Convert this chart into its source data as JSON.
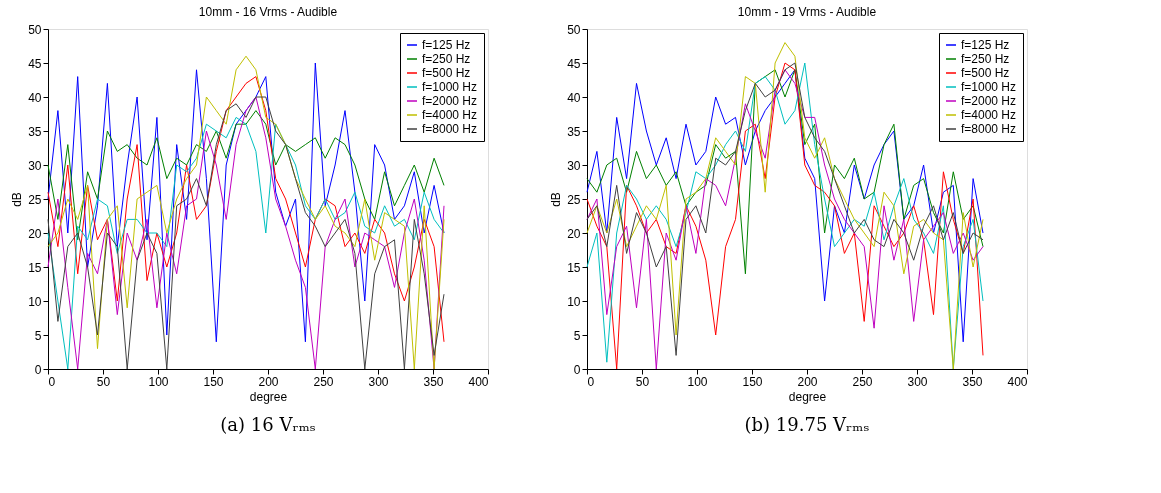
{
  "chart_data": [
    {
      "type": "line",
      "title": "10mm - 16 Vrms - Audible",
      "xlabel": "degree",
      "ylabel": "dB",
      "annotations": [
        "(a) 16 Vᵣₘₛ"
      ],
      "xlim": [
        0,
        400
      ],
      "xticks": [
        0,
        50,
        100,
        150,
        200,
        250,
        300,
        350,
        400
      ],
      "ylim": [
        0,
        50
      ],
      "yticks": [
        0,
        5,
        10,
        15,
        20,
        25,
        30,
        35,
        40,
        45,
        50
      ],
      "grid": false,
      "legend": "top right",
      "marker": "none",
      "line_style": "solid",
      "x": [
        0,
        9,
        18,
        27,
        36,
        45,
        54,
        63,
        72,
        81,
        90,
        99,
        108,
        117,
        126,
        135,
        144,
        153,
        162,
        171,
        180,
        189,
        198,
        207,
        216,
        225,
        234,
        243,
        252,
        261,
        270,
        279,
        288,
        297,
        306,
        315,
        324,
        333,
        342,
        351,
        360
      ],
      "series": [
        {
          "name": "f=125 Hz",
          "color": "#0000ff",
          "values": [
            25,
            38,
            20,
            43,
            15,
            24,
            42,
            18,
            30,
            40,
            19,
            37,
            5,
            33,
            22,
            44,
            28,
            4,
            30,
            36,
            38,
            40,
            43,
            26,
            21,
            25,
            4,
            45,
            24,
            30,
            38,
            26,
            10,
            33,
            30,
            22,
            24,
            29,
            20,
            27,
            20
          ]
        },
        {
          "name": "f=250 Hz",
          "color": "#008000",
          "values": [
            30,
            22,
            33,
            19,
            29,
            25,
            35,
            32,
            33,
            31,
            30,
            34,
            28,
            31,
            30,
            33,
            32,
            35,
            31,
            36,
            36,
            38,
            36,
            30,
            33,
            32,
            33,
            34,
            31,
            34,
            33,
            30,
            25,
            22,
            29,
            24,
            27,
            30,
            26,
            31,
            27
          ]
        },
        {
          "name": "f=500 Hz",
          "color": "#ff0000",
          "values": [
            26,
            18,
            30,
            14,
            27,
            19,
            22,
            10,
            25,
            33,
            13,
            20,
            15,
            20,
            30,
            22,
            24,
            32,
            38,
            40,
            42,
            43,
            38,
            28,
            25,
            20,
            15,
            22,
            25,
            24,
            18,
            20,
            17,
            22,
            20,
            14,
            10,
            15,
            22,
            18,
            4
          ]
        },
        {
          "name": "f=1000 Hz",
          "color": "#00bfbf",
          "values": [
            20,
            10,
            0,
            21,
            19,
            25,
            24,
            17,
            22,
            22,
            20,
            20,
            18,
            30,
            29,
            31,
            36,
            35,
            34,
            37,
            36,
            32,
            20,
            36,
            33,
            30,
            24,
            22,
            25,
            22,
            23,
            26,
            21,
            20,
            24,
            21,
            22,
            19,
            26,
            22,
            20
          ]
        },
        {
          "name": "f=2000 Hz",
          "color": "#bf00bf",
          "values": [
            15,
            25,
            12,
            0,
            17,
            14,
            22,
            8,
            20,
            16,
            22,
            9,
            20,
            14,
            24,
            25,
            35,
            30,
            22,
            33,
            38,
            40,
            34,
            25,
            21,
            16,
            12,
            0,
            18,
            22,
            25,
            15,
            20,
            19,
            18,
            12,
            20,
            25,
            16,
            0,
            24
          ]
        },
        {
          "name": "f=4000 Hz",
          "color": "#bfbf00",
          "values": [
            18,
            20,
            25,
            22,
            27,
            3,
            22,
            24,
            9,
            25,
            26,
            27,
            20,
            25,
            28,
            30,
            40,
            38,
            36,
            44,
            46,
            44,
            37,
            36,
            33,
            28,
            25,
            22,
            24,
            21,
            20,
            18,
            25,
            16,
            23,
            22,
            21,
            0,
            24,
            0,
            22
          ]
        },
        {
          "name": "f=8000 Hz",
          "color": "#404040",
          "values": [
            22,
            7,
            18,
            20,
            15,
            5,
            20,
            18,
            0,
            16,
            20,
            17,
            0,
            24,
            25,
            28,
            24,
            33,
            38,
            39,
            37,
            40,
            40,
            35,
            33,
            28,
            23,
            21,
            18,
            20,
            22,
            17,
            0,
            14,
            18,
            19,
            0,
            22,
            14,
            2,
            11
          ]
        }
      ]
    },
    {
      "type": "line",
      "title": "10mm - 19 Vrms - Audible",
      "xlabel": "degree",
      "ylabel": "dB",
      "annotations": [
        "(b) 19.75 Vᵣₘₛ"
      ],
      "xlim": [
        0,
        400
      ],
      "xticks": [
        0,
        50,
        100,
        150,
        200,
        250,
        300,
        350,
        400
      ],
      "ylim": [
        0,
        50
      ],
      "yticks": [
        0,
        5,
        10,
        15,
        20,
        25,
        30,
        35,
        40,
        45,
        50
      ],
      "grid": false,
      "legend": "top right",
      "marker": "none",
      "line_style": "solid",
      "x": [
        0,
        9,
        18,
        27,
        36,
        45,
        54,
        63,
        72,
        81,
        90,
        99,
        108,
        117,
        126,
        135,
        144,
        153,
        162,
        171,
        180,
        189,
        198,
        207,
        216,
        225,
        234,
        243,
        252,
        261,
        270,
        279,
        288,
        297,
        306,
        315,
        324,
        333,
        342,
        351,
        360
      ],
      "series": [
        {
          "name": "f=125 Hz",
          "color": "#0000ff",
          "values": [
            26,
            32,
            20,
            37,
            28,
            42,
            35,
            30,
            34,
            28,
            36,
            30,
            32,
            40,
            36,
            37,
            30,
            35,
            38,
            40,
            42,
            44,
            31,
            28,
            10,
            24,
            20,
            30,
            25,
            30,
            33,
            35,
            22,
            24,
            30,
            20,
            26,
            27,
            4,
            28,
            20
          ]
        },
        {
          "name": "f=250 Hz",
          "color": "#008000",
          "values": [
            28,
            26,
            30,
            31,
            26,
            32,
            28,
            30,
            27,
            29,
            24,
            26,
            27,
            33,
            31,
            32,
            14,
            42,
            43,
            44,
            40,
            44,
            33,
            36,
            20,
            30,
            28,
            31,
            25,
            26,
            33,
            36,
            22,
            27,
            28,
            23,
            20,
            29,
            22,
            24,
            18
          ]
        },
        {
          "name": "f=500 Hz",
          "color": "#ff0000",
          "values": [
            25,
            21,
            18,
            0,
            27,
            24,
            20,
            22,
            18,
            17,
            24,
            21,
            16,
            5,
            18,
            22,
            35,
            36,
            28,
            40,
            45,
            44,
            30,
            27,
            26,
            24,
            17,
            20,
            7,
            24,
            21,
            18,
            20,
            24,
            19,
            8,
            29,
            22,
            17,
            25,
            2
          ]
        },
        {
          "name": "f=1000 Hz",
          "color": "#00bfbf",
          "values": [
            15,
            20,
            1,
            20,
            27,
            25,
            22,
            24,
            22,
            18,
            23,
            29,
            28,
            30,
            33,
            35,
            32,
            42,
            43,
            41,
            36,
            38,
            45,
            33,
            25,
            18,
            20,
            22,
            21,
            26,
            19,
            24,
            28,
            22,
            20,
            17,
            24,
            0,
            18,
            22,
            10
          ]
        },
        {
          "name": "f=2000 Hz",
          "color": "#bf00bf",
          "values": [
            22,
            25,
            8,
            18,
            21,
            9,
            22,
            0,
            20,
            16,
            24,
            17,
            28,
            27,
            24,
            31,
            39,
            35,
            31,
            41,
            44,
            42,
            37,
            37,
            30,
            25,
            22,
            20,
            18,
            6,
            24,
            16,
            22,
            7,
            19,
            21,
            23,
            17,
            20,
            16,
            18
          ]
        },
        {
          "name": "f=4000 Hz",
          "color": "#bfbf00",
          "values": [
            20,
            24,
            20,
            25,
            18,
            21,
            24,
            22,
            27,
            5,
            25,
            26,
            28,
            34,
            32,
            30,
            43,
            42,
            26,
            45,
            48,
            46,
            34,
            31,
            34,
            28,
            25,
            22,
            20,
            18,
            26,
            24,
            14,
            21,
            22,
            20,
            19,
            0,
            23,
            15,
            22
          ]
        },
        {
          "name": "f=8000 Hz",
          "color": "#404040",
          "values": [
            22,
            24,
            18,
            27,
            17,
            23,
            20,
            15,
            18,
            2,
            22,
            24,
            20,
            31,
            30,
            32,
            38,
            42,
            40,
            41,
            44,
            45,
            37,
            34,
            32,
            28,
            24,
            20,
            22,
            19,
            18,
            22,
            20,
            16,
            21,
            24,
            19,
            23,
            17,
            20,
            19
          ]
        }
      ]
    }
  ]
}
